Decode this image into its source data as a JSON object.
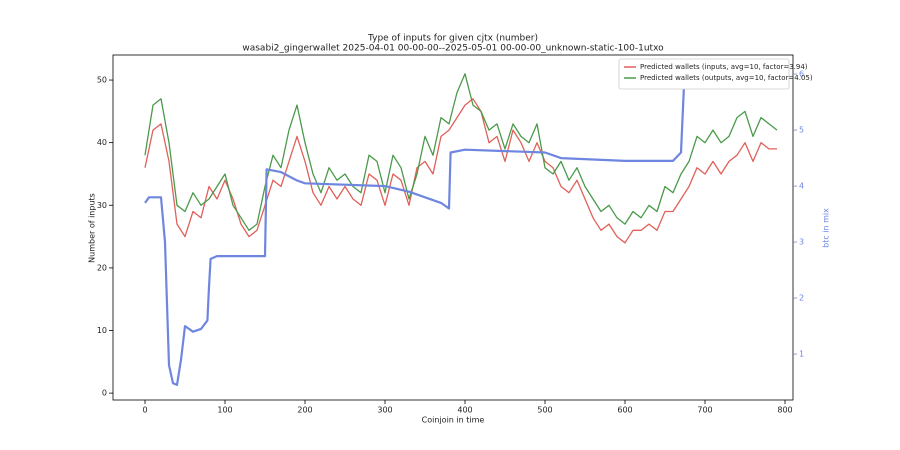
{
  "chart_data": {
    "type": "line",
    "title": "Type of inputs for given cjtx (number)",
    "subtitle": "wasabi2_gingerwallet 2025-04-01 00-00-00--2025-05-01 00-00-00_unknown-static-100-1utxo",
    "x_label": "Coinjoin in time",
    "y_label": "Number of inputs",
    "y2_label": "btc in mix",
    "xlim": [
      -40,
      810
    ],
    "xticks": [
      0,
      100,
      200,
      300,
      400,
      500,
      600,
      700,
      800
    ],
    "ylim": [
      -1.1,
      54
    ],
    "yticks": [
      0,
      10,
      20,
      30,
      40,
      50
    ],
    "y2lim": [
      0.18,
      6.34
    ],
    "y2ticks": [
      1,
      2,
      3,
      4,
      5,
      6
    ],
    "legend": "upper right",
    "series": [
      {
        "name": "Predicted wallets (inputs, avg=10, factor=3.94)",
        "color": "#e0605a",
        "x": [
          0,
          10,
          20,
          30,
          40,
          50,
          60,
          70,
          80,
          90,
          100,
          110,
          120,
          130,
          140,
          150,
          160,
          170,
          180,
          190,
          200,
          210,
          220,
          230,
          240,
          250,
          260,
          270,
          280,
          290,
          300,
          310,
          320,
          330,
          340,
          350,
          360,
          370,
          380,
          390,
          400,
          410,
          420,
          430,
          440,
          450,
          460,
          470,
          480,
          490,
          500,
          510,
          520,
          530,
          540,
          550,
          560,
          570,
          580,
          590,
          600,
          610,
          620,
          630,
          640,
          650,
          660,
          670,
          680,
          690,
          700,
          710,
          720,
          730,
          740,
          750,
          760,
          770,
          780,
          790
        ],
        "values": [
          36,
          42,
          43,
          37,
          27,
          25,
          29,
          28,
          33,
          31,
          34,
          31,
          27,
          25,
          26,
          30,
          34,
          33,
          37,
          41,
          37,
          32,
          30,
          33,
          31,
          33,
          31,
          30,
          35,
          34,
          30,
          35,
          34,
          30,
          36,
          37,
          35,
          41,
          42,
          44,
          46,
          47,
          45,
          40,
          41,
          37,
          42,
          40,
          37,
          40,
          37,
          36,
          33,
          32,
          34,
          31,
          28,
          26,
          27,
          25,
          24,
          26,
          26,
          27,
          26,
          29,
          29,
          31,
          33,
          36,
          35,
          37,
          35,
          37,
          38,
          40,
          37,
          40,
          39,
          39
        ]
      },
      {
        "name": "Predicted wallets (outputs, avg=10, factor=4.05)",
        "color": "#4a9a4a",
        "x": [
          0,
          10,
          20,
          30,
          40,
          50,
          60,
          70,
          80,
          90,
          100,
          110,
          120,
          130,
          140,
          150,
          160,
          170,
          180,
          190,
          200,
          210,
          220,
          230,
          240,
          250,
          260,
          270,
          280,
          290,
          300,
          310,
          320,
          330,
          340,
          350,
          360,
          370,
          380,
          390,
          400,
          410,
          420,
          430,
          440,
          450,
          460,
          470,
          480,
          490,
          500,
          510,
          520,
          530,
          540,
          550,
          560,
          570,
          580,
          590,
          600,
          610,
          620,
          630,
          640,
          650,
          660,
          670,
          680,
          690,
          700,
          710,
          720,
          730,
          740,
          750,
          760,
          770,
          780,
          790
        ],
        "values": [
          38,
          46,
          47,
          40,
          30,
          29,
          32,
          30,
          31,
          33,
          35,
          30,
          28,
          26,
          27,
          33,
          38,
          36,
          42,
          46,
          40,
          35,
          32,
          36,
          34,
          35,
          33,
          32,
          38,
          37,
          32,
          38,
          36,
          31,
          35,
          41,
          38,
          44,
          43,
          48,
          51,
          46,
          45,
          42,
          43,
          39,
          43,
          41,
          40,
          43,
          36,
          35,
          37,
          34,
          36,
          33,
          31,
          29,
          30,
          28,
          27,
          29,
          28,
          30,
          29,
          33,
          32,
          35,
          37,
          41,
          40,
          42,
          40,
          41,
          44,
          45,
          41,
          44,
          43,
          42
        ]
      },
      {
        "name": "btc in mix",
        "color": "#6f86e0",
        "axis": "y2",
        "x": [
          0,
          5,
          10,
          20,
          25,
          30,
          35,
          40,
          45,
          50,
          55,
          60,
          70,
          78,
          80,
          82,
          90,
          150,
          152,
          170,
          190,
          200,
          300,
          330,
          350,
          370,
          380,
          382,
          400,
          500,
          520,
          600,
          660,
          670,
          675
        ],
        "values": [
          3.7,
          3.8,
          3.8,
          3.8,
          3.0,
          0.8,
          0.48,
          0.45,
          0.9,
          1.5,
          1.45,
          1.4,
          1.45,
          1.6,
          2.2,
          2.7,
          2.75,
          2.75,
          4.3,
          4.25,
          4.1,
          4.05,
          4.0,
          3.9,
          3.8,
          3.7,
          3.6,
          4.6,
          4.65,
          4.6,
          4.5,
          4.45,
          4.45,
          4.6,
          6.2
        ]
      }
    ]
  }
}
